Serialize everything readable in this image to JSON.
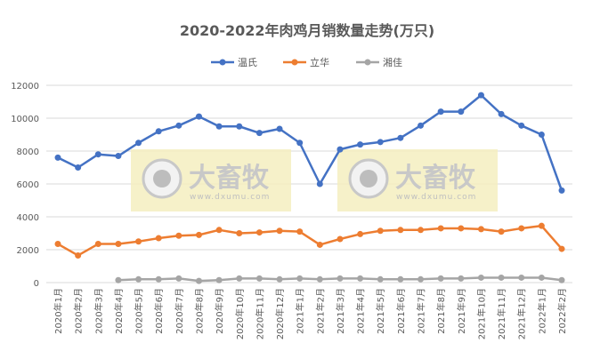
{
  "chart_data": {
    "type": "line",
    "title": "2020-2022年肉鸡月销数量走势(万只)",
    "xlabel": "",
    "ylabel": "",
    "ylim": [
      0,
      12000
    ],
    "yticks": [
      0,
      2000,
      4000,
      6000,
      8000,
      10000,
      12000
    ],
    "grid": true,
    "legend": "top",
    "categories": [
      "2020年1月",
      "2020年2月",
      "2020年3月",
      "2020年4月",
      "2020年5月",
      "2020年6月",
      "2020年7月",
      "2020年8月",
      "2020年9月",
      "2020年10月",
      "2020年11月",
      "2020年12月",
      "2021年1月",
      "2021年2月",
      "2021年3月",
      "2021年4月",
      "2021年5月",
      "2021年6月",
      "2021年7月",
      "2021年8月",
      "2021年9月",
      "2021年10月",
      "2021年11月",
      "2021年12月",
      "2022年1月",
      "2022年2月"
    ],
    "series": [
      {
        "name": "温氏",
        "color": "#4472C4",
        "values": [
          7600,
          7000,
          7800,
          7700,
          8500,
          9200,
          9550,
          10100,
          9500,
          9500,
          9100,
          9350,
          8500,
          6000,
          8100,
          8400,
          8550,
          8800,
          9550,
          10400,
          10400,
          11400,
          10250,
          9550,
          9000,
          5600
        ]
      },
      {
        "name": "立华",
        "color": "#ED7D31",
        "values": [
          2350,
          1650,
          2350,
          2350,
          2500,
          2700,
          2850,
          2900,
          3200,
          3000,
          3050,
          3150,
          3100,
          2300,
          2650,
          2950,
          3150,
          3200,
          3200,
          3300,
          3300,
          3250,
          3100,
          3300,
          3450,
          2050
        ]
      },
      {
        "name": "湘佳",
        "color": "#A5A5A5",
        "values": [
          null,
          null,
          null,
          150,
          200,
          200,
          250,
          100,
          150,
          250,
          250,
          200,
          250,
          200,
          250,
          250,
          200,
          200,
          200,
          250,
          250,
          300,
          300,
          300,
          300,
          150
        ]
      }
    ]
  },
  "watermark": {
    "brand": "大畜牧",
    "url": "www.dxumu.com"
  }
}
